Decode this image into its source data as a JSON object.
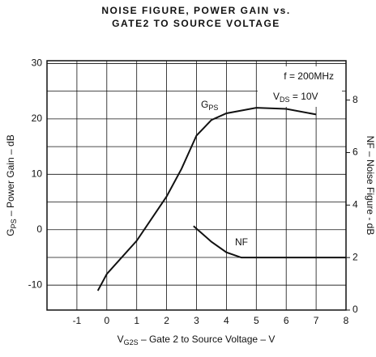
{
  "chart_data": {
    "type": "line",
    "title": [
      "NOISE FIGURE, POWER GAIN vs.",
      "GATE2 TO SOURCE VOLTAGE"
    ],
    "xlabel": {
      "main": "V",
      "sub": "G2S",
      "rest": " – Gate 2 to Source Voltage – V"
    },
    "ylabel": {
      "main": "G",
      "sub": "PS",
      "rest": " – Power Gain – dB"
    },
    "y2label": "NF – Noise Figure - dB",
    "annotations": {
      "freq": "f = 200MHz",
      "vds": {
        "main": "V",
        "sub": "DS",
        "rest": " = 10V"
      },
      "gps": {
        "main": "G",
        "sub": "PS"
      },
      "nf": "NF"
    },
    "xlim": [
      -2,
      8
    ],
    "xticks": [
      -1,
      0,
      1,
      2,
      3,
      4,
      5,
      6,
      7,
      8
    ],
    "ylim": [
      -14.5,
      30.5
    ],
    "yticks": [
      -10,
      0,
      10,
      20,
      30
    ],
    "y_minor_grid": [
      -5,
      5,
      15,
      25
    ],
    "y2lim": [
      0,
      9.5
    ],
    "y2ticks": [
      0,
      2,
      4,
      6,
      8
    ],
    "grid": true,
    "series": [
      {
        "name": "GPS",
        "color": "#111",
        "x": [
          -0.3,
          0,
          1,
          2,
          2.5,
          3,
          3.5,
          4,
          5,
          6,
          7
        ],
        "values": [
          -11,
          -8,
          -2,
          6,
          11,
          17,
          19.8,
          21,
          22,
          21.8,
          20.8
        ]
      },
      {
        "name": "NF",
        "color": "#111",
        "axis": "y2",
        "x": [
          2.9,
          3.5,
          4,
          4.5,
          5,
          6,
          7,
          8
        ],
        "values": [
          3.2,
          2.6,
          2.2,
          2.0,
          2.0,
          2.0,
          2.0,
          2.0
        ]
      }
    ]
  }
}
